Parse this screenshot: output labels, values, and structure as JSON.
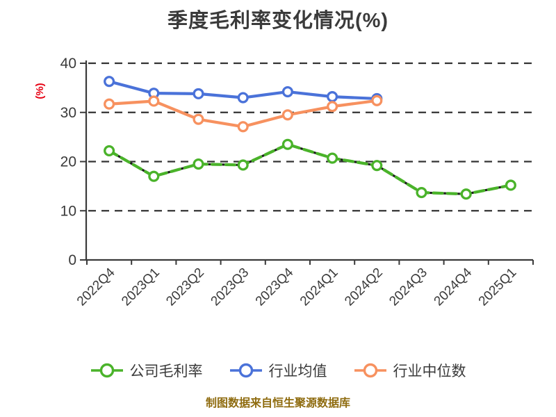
{
  "title": "季度毛利率变化情况(%)",
  "footer": "制图数据来自恒生聚源数据库",
  "colors": {
    "text": "#3a3a3a",
    "axis": "#3a3a3a",
    "grid": "#333333",
    "ylabel": "#e60012",
    "footer": "#8f6c10",
    "background": "#ffffff",
    "marker_fill": "#ffffff"
  },
  "chart_data": {
    "type": "line",
    "title": "季度毛利率变化情况(%)",
    "ylabel": "(%)",
    "xlabel": "",
    "ylim": [
      0,
      40
    ],
    "yticks": [
      0,
      10,
      20,
      30,
      40
    ],
    "grid": "horizontal dashed",
    "legend_position": "bottom",
    "categories": [
      "2022Q4",
      "2023Q1",
      "2023Q2",
      "2023Q3",
      "2023Q4",
      "2024Q1",
      "2024Q2",
      "2024Q3",
      "2024Q4",
      "2025Q1"
    ],
    "series": [
      {
        "name": "公司毛利率",
        "color": "#4ab32a",
        "style": "green line with dark dashes",
        "values": [
          22.2,
          17.0,
          19.5,
          19.3,
          23.5,
          20.7,
          19.2,
          13.7,
          13.4,
          15.2
        ]
      },
      {
        "name": "行业均值",
        "color": "#4a72d9",
        "style": "solid",
        "values": [
          36.3,
          33.9,
          33.8,
          33.0,
          34.2,
          33.2,
          32.8,
          null,
          null,
          null
        ]
      },
      {
        "name": "行业中位数",
        "color": "#f7915f",
        "style": "solid",
        "values": [
          31.7,
          32.3,
          28.6,
          27.1,
          29.5,
          31.2,
          32.4,
          null,
          null,
          null
        ]
      }
    ]
  }
}
